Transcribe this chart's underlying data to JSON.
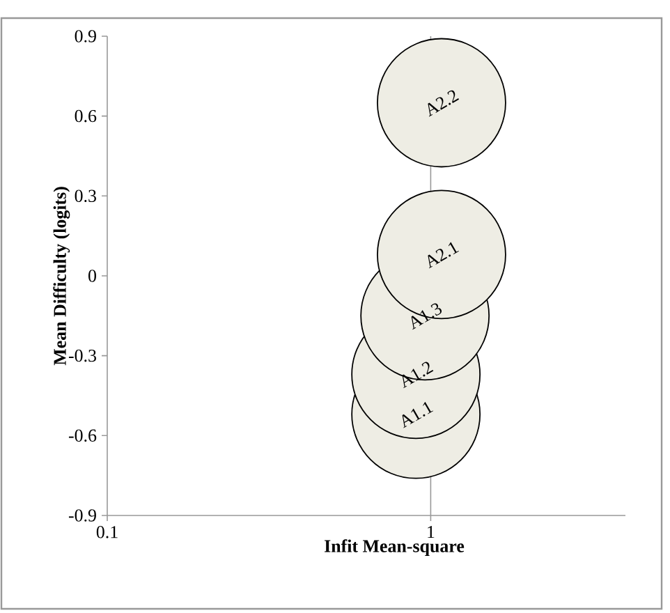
{
  "chart_data": {
    "type": "bubble",
    "xlabel": "Infit Mean-square",
    "ylabel": "Mean Difficulty (logits)",
    "x": [
      0.9,
      0.9,
      0.96,
      1.08,
      1.08
    ],
    "values": [
      -0.52,
      -0.37,
      -0.15,
      0.08,
      0.65
    ],
    "sizes": [
      1,
      1,
      1,
      1,
      1
    ],
    "color": "#eeede4",
    "log": "x",
    "xlim": [
      0.1,
      4
    ],
    "ylim": [
      -0.9,
      0.9
    ],
    "xticks": [
      0.1,
      1
    ],
    "yticks": [
      -0.9,
      -0.6,
      -0.3,
      0,
      0.3,
      0.6,
      0.9
    ],
    "ref_lines": [
      {
        "axis": "x",
        "value": 1
      }
    ],
    "annotations": [
      {
        "text": "A1.1",
        "x": 0.9,
        "y": -0.52
      },
      {
        "text": "A1.2",
        "x": 0.9,
        "y": -0.37
      },
      {
        "text": "A1.3",
        "x": 0.96,
        "y": -0.15
      },
      {
        "text": "A2.1",
        "x": 1.08,
        "y": 0.08
      },
      {
        "text": "A2.2",
        "x": 1.08,
        "y": 0.65
      }
    ]
  }
}
